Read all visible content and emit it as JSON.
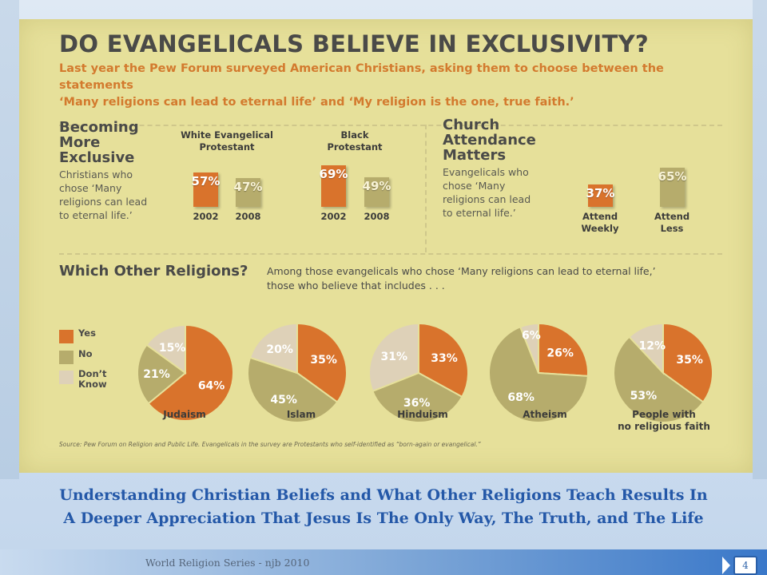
{
  "infographic": {
    "title": "DO EVANGELICALS BELIEVE IN EXCLUSIVITY?",
    "intro_line1": "Last year the Pew Forum surveyed American Christians, asking them to choose between the statements",
    "intro_line2": "‘Many religions can lead to eternal life’ and ‘My religion is the one, true faith.’",
    "exclusive": {
      "title_lines": [
        "Becoming",
        "More",
        "Exclusive"
      ],
      "desc_lines": [
        "Christians who",
        "chose ‘Many",
        "religions can lead",
        "to eternal life.’"
      ]
    },
    "attendance": {
      "title_lines": [
        "Church",
        "Attendance",
        "Matters"
      ],
      "desc_lines": [
        "Evangelicals who",
        "chose ‘Many",
        "religions can lead",
        "to eternal life.’"
      ]
    },
    "pies_section": {
      "title": "Which Other Religions?",
      "desc_line1": "Among those evangelicals who chose ‘Many religions can lead to eternal life,’",
      "desc_line2": "those who believe that includes . . ."
    },
    "legend": [
      {
        "label_lines": [
          "Yes"
        ],
        "color": "#d9732c"
      },
      {
        "label_lines": [
          "No"
        ],
        "color": "#b6ac6c"
      },
      {
        "label_lines": [
          "Don’t",
          "Know"
        ],
        "color": "#ded1b8"
      }
    ],
    "source": "Source: Pew Forum on Religion and Public Life. Evangelicals in the survey are Protestants who self-identified as “born-again or evangelical.”"
  },
  "chart_data": [
    {
      "type": "bar",
      "title": "Becoming More Exclusive",
      "groups": [
        {
          "label_lines": [
            "White Evangelical",
            "Protestant"
          ],
          "bars": [
            {
              "category": "2002",
              "value": 57,
              "label": "57%"
            },
            {
              "category": "2008",
              "value": 47,
              "label": "47%"
            }
          ]
        },
        {
          "label_lines": [
            "Black",
            "Protestant"
          ],
          "bars": [
            {
              "category": "2002",
              "value": 69,
              "label": "69%"
            },
            {
              "category": "2008",
              "value": 49,
              "label": "49%"
            }
          ]
        }
      ],
      "colors": {
        "2002": "#d9732c",
        "2008": "#b6ac6c"
      },
      "ylim": [
        0,
        100
      ]
    },
    {
      "type": "bar",
      "title": "Church Attendance Matters",
      "bars": [
        {
          "category_lines": [
            "Attend",
            "Weekly"
          ],
          "value": 37,
          "label": "37%",
          "color": "#d9732c"
        },
        {
          "category_lines": [
            "Attend",
            "Less"
          ],
          "value": 65,
          "label": "65%",
          "color": "#b6ac6c"
        }
      ],
      "ylim": [
        0,
        100
      ]
    },
    {
      "type": "pie",
      "title": "Which Other Religions?",
      "series_names": [
        "Yes",
        "No",
        "Don’t Know"
      ],
      "colors": [
        "#d9732c",
        "#b6ac6c",
        "#ded1b8"
      ],
      "pies": [
        {
          "label_lines": [
            "Judaism"
          ],
          "values": [
            64,
            21,
            15
          ]
        },
        {
          "label_lines": [
            "Islam"
          ],
          "values": [
            35,
            45,
            20
          ]
        },
        {
          "label_lines": [
            "Hinduism"
          ],
          "values": [
            33,
            36,
            31
          ]
        },
        {
          "label_lines": [
            "Atheism"
          ],
          "values": [
            26,
            68,
            6
          ]
        },
        {
          "label_lines": [
            "People with",
            "no religious faith"
          ],
          "values": [
            35,
            53,
            12
          ]
        }
      ]
    }
  ],
  "caption": {
    "line1": "Understanding Christian Beliefs and What Other Religions Teach Results In",
    "line2": "A Deeper Appreciation That Jesus Is The Only Way, The Truth, and The Life"
  },
  "footer": {
    "text": "World Religion Series - njb 2010",
    "page_number": "4"
  }
}
